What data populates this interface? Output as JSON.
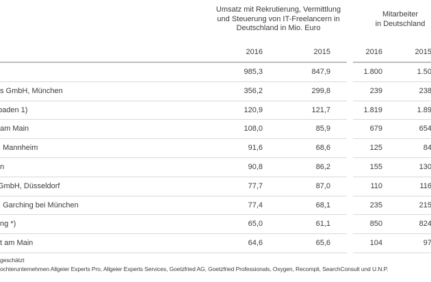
{
  "colors": {
    "background": "#ffffff",
    "text": "#3a3a3a",
    "row_border": "#d9d9d9",
    "header_border": "#bdbdbd"
  },
  "header": {
    "umsatz_title_lines": [
      "Umsatz mit Rekrutierung, Vermittlung",
      "und Steuerung von IT-Freelancern in",
      "Deutschland in Mio. Euro"
    ],
    "mitarbeiter_title_lines": [
      "Mitarbeiter",
      "in Deutschland"
    ],
    "year_columns": [
      "2016",
      "2015",
      "2016",
      "2015"
    ]
  },
  "rows": [
    {
      "name": "",
      "umsatz_2016": "985,3",
      "umsatz_2015": "847,9",
      "mitarbeiter_2016": "1.800",
      "mitarbeiter_2015": "1.50"
    },
    {
      "name": "s GmbH, München",
      "umsatz_2016": "356,2",
      "umsatz_2015": "299,8",
      "mitarbeiter_2016": "239",
      "mitarbeiter_2015": "238"
    },
    {
      "name": "baden 1)",
      "umsatz_2016": "120,9",
      "umsatz_2015": "121,7",
      "mitarbeiter_2016": "1.819",
      "mitarbeiter_2015": "1.89"
    },
    {
      "name": "am Main",
      "umsatz_2016": "108,0",
      "umsatz_2015": "85,9",
      "mitarbeiter_2016": "679",
      "mitarbeiter_2015": "654"
    },
    {
      "name": ", Mannheim",
      "umsatz_2016": "91,6",
      "umsatz_2015": "68,6",
      "mitarbeiter_2016": "125",
      "mitarbeiter_2015": "84"
    },
    {
      "name": "n",
      "umsatz_2016": "90,8",
      "umsatz_2015": "86,2",
      "mitarbeiter_2016": "155",
      "mitarbeiter_2015": "130"
    },
    {
      "name": "GmbH, Düsseldorf",
      "umsatz_2016": "77,7",
      "umsatz_2015": "87,0",
      "mitarbeiter_2016": "110",
      "mitarbeiter_2015": "116"
    },
    {
      "name": ", Garching bei München",
      "umsatz_2016": "77,4",
      "umsatz_2015": "68,1",
      "mitarbeiter_2016": "235",
      "mitarbeiter_2015": "215"
    },
    {
      "name": "ng *)",
      "umsatz_2016": "65,0",
      "umsatz_2015": "61,1",
      "mitarbeiter_2016": "850",
      "mitarbeiter_2015": "824"
    },
    {
      "name": "t am Main",
      "umsatz_2016": "64,6",
      "umsatz_2015": "65,6",
      "mitarbeiter_2016": "104",
      "mitarbeiter_2015": "97"
    }
  ],
  "footnotes": [
    "geschätzt",
    "ochterunternehmen Allgeier Experts Pro, Allgeier Experts Services, Goetzfried AG, Goetzfried Professionals, Oxygen, Recompli, SearchConsult und U.N.P."
  ]
}
